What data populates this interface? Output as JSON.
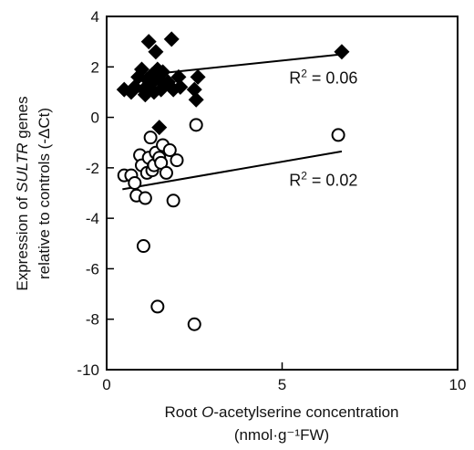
{
  "chart_data": {
    "type": "scatter",
    "xlim": [
      0,
      10
    ],
    "ylim": [
      -10,
      4
    ],
    "xticks": [
      "0",
      "5",
      "10"
    ],
    "yticks": [
      "4",
      "2",
      "0",
      "-2",
      "-4",
      "-6",
      "-8",
      "-10"
    ],
    "x_tick_values": [
      0,
      5,
      10
    ],
    "y_tick_values": [
      4,
      2,
      0,
      -2,
      -4,
      -6,
      -8,
      -10
    ],
    "xlabel": {
      "line1_before": "Root ",
      "line1_italic": "O",
      "line1_after": "-acetylserine concentration",
      "line2": "(nmol·g⁻¹FW)"
    },
    "ylabel": {
      "line1_before": "Expression of ",
      "line1_italic": "SULTR",
      "line1_after": " genes",
      "line2": "relative to controls (-ΔCt)"
    },
    "grid": false,
    "series": [
      {
        "marker": "filled-diamond",
        "color": "#000000",
        "points": [
          [
            0.5,
            1.1
          ],
          [
            0.7,
            1.0
          ],
          [
            0.8,
            1.2
          ],
          [
            0.9,
            1.6
          ],
          [
            1.0,
            1.9
          ],
          [
            1.05,
            1.1
          ],
          [
            1.1,
            0.9
          ],
          [
            1.15,
            1.5
          ],
          [
            1.2,
            3.0
          ],
          [
            1.25,
            1.3
          ],
          [
            1.3,
            1.7
          ],
          [
            1.35,
            1.0
          ],
          [
            1.4,
            2.6
          ],
          [
            1.45,
            1.9
          ],
          [
            1.5,
            1.5
          ],
          [
            1.55,
            1.1
          ],
          [
            1.6,
            1.8
          ],
          [
            1.5,
            -0.4
          ],
          [
            1.75,
            1.4
          ],
          [
            1.85,
            3.1
          ],
          [
            1.9,
            1.1
          ],
          [
            2.05,
            1.6
          ],
          [
            2.1,
            1.2
          ],
          [
            2.5,
            1.1
          ],
          [
            2.55,
            0.7
          ],
          [
            2.6,
            1.6
          ],
          [
            6.7,
            2.6
          ]
        ],
        "trend": [
          [
            1.2,
            1.7
          ],
          [
            6.7,
            2.5
          ]
        ],
        "r2_prefix": "R",
        "r2_exp": "2",
        "r2_rest": " = 0.06",
        "r2_pos": [
          5.2,
          1.55
        ]
      },
      {
        "marker": "open-circle",
        "color": "#000000",
        "points": [
          [
            0.5,
            -2.3
          ],
          [
            0.7,
            -2.3
          ],
          [
            0.8,
            -2.6
          ],
          [
            0.85,
            -3.1
          ],
          [
            0.95,
            -1.5
          ],
          [
            1.0,
            -1.9
          ],
          [
            1.05,
            -5.1
          ],
          [
            1.1,
            -3.2
          ],
          [
            1.15,
            -2.2
          ],
          [
            1.2,
            -1.6
          ],
          [
            1.25,
            -0.8
          ],
          [
            1.3,
            -2.1
          ],
          [
            1.35,
            -1.9
          ],
          [
            1.4,
            -1.4
          ],
          [
            1.45,
            -7.5
          ],
          [
            1.5,
            -1.6
          ],
          [
            1.55,
            -1.8
          ],
          [
            1.6,
            -1.1
          ],
          [
            1.7,
            -2.2
          ],
          [
            1.8,
            -1.3
          ],
          [
            1.9,
            -3.3
          ],
          [
            2.0,
            -1.7
          ],
          [
            2.5,
            -8.2
          ],
          [
            2.55,
            -0.3
          ],
          [
            6.6,
            -0.7
          ]
        ],
        "trend": [
          [
            0.45,
            -2.85
          ],
          [
            6.7,
            -1.35
          ]
        ],
        "r2_prefix": "R",
        "r2_exp": "2",
        "r2_rest": " = 0.02",
        "r2_pos": [
          5.2,
          -2.5
        ]
      }
    ]
  }
}
